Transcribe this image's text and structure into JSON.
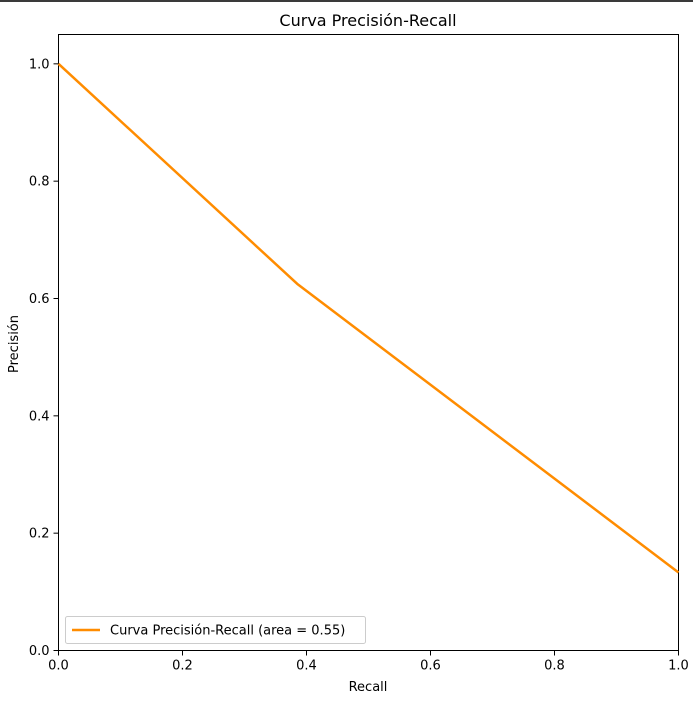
{
  "chart_data": {
    "type": "line",
    "title": "Curva Precisión-Recall",
    "xlabel": "Recall",
    "ylabel": "Precisión",
    "xlim": [
      0,
      1
    ],
    "ylim": [
      0,
      1.05
    ],
    "xticks": [
      "0.0",
      "0.2",
      "0.4",
      "0.6",
      "0.8",
      "1.0"
    ],
    "yticks": [
      "0.0",
      "0.2",
      "0.4",
      "0.6",
      "0.8",
      "1.0"
    ],
    "series": [
      {
        "name": "Curva Precisión-Recall (area = 0.55)",
        "color": "#ff8c00",
        "x": [
          0.0,
          0.385,
          1.0
        ],
        "y": [
          1.0,
          0.625,
          0.133
        ]
      }
    ],
    "legend_position": "lower-left",
    "grid": false
  }
}
